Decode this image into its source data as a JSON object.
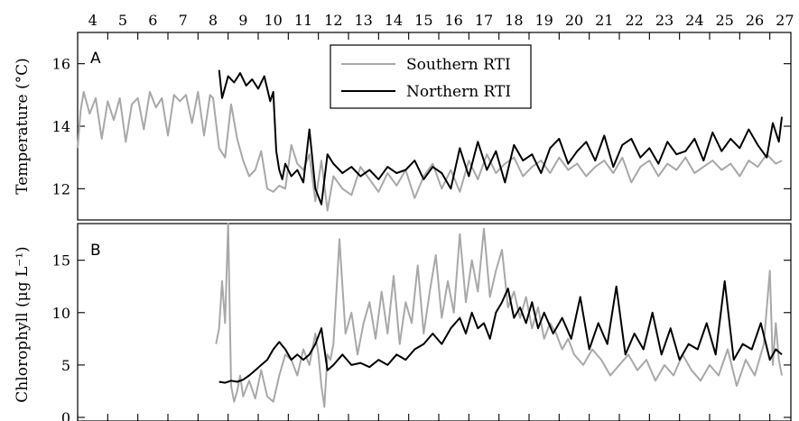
{
  "chart_data": [
    {
      "type": "line",
      "panel_label": "A",
      "ylabel": "Temperature (°C)",
      "ylim": [
        11,
        17
      ],
      "yticks": [
        12,
        14,
        16
      ],
      "x_tick_labels": [
        "4",
        "5",
        "6",
        "7",
        "8",
        "9",
        "10",
        "11",
        "12",
        "13",
        "14",
        "15",
        "16",
        "17",
        "18",
        "19",
        "20",
        "21",
        "22",
        "23",
        "24",
        "25",
        "26",
        "27"
      ],
      "xlim": [
        3.5,
        27.2
      ],
      "legend": {
        "placement": "top-center",
        "entries": [
          "Southern RTI",
          "Northern RTI"
        ]
      },
      "series": [
        {
          "name": "Southern RTI",
          "color": "#a8a8a8",
          "x": [
            3.5,
            3.6,
            3.7,
            3.9,
            4.1,
            4.3,
            4.5,
            4.7,
            4.9,
            5.1,
            5.3,
            5.5,
            5.7,
            5.9,
            6.1,
            6.3,
            6.5,
            6.7,
            6.9,
            7.1,
            7.3,
            7.5,
            7.7,
            7.9,
            8.0,
            8.2,
            8.4,
            8.6,
            8.8,
            9.0,
            9.2,
            9.4,
            9.6,
            9.8,
            10.0,
            10.2,
            10.4,
            10.6,
            10.8,
            11.0,
            11.2,
            11.4,
            11.6,
            11.8,
            12.0,
            12.3,
            12.6,
            12.9,
            13.2,
            13.5,
            13.8,
            14.1,
            14.4,
            14.7,
            15.0,
            15.3,
            15.6,
            15.9,
            16.2,
            16.5,
            16.8,
            17.1,
            17.4,
            17.7,
            18.0,
            18.3,
            18.6,
            18.9,
            19.2,
            19.5,
            19.8,
            20.1,
            20.4,
            20.7,
            21.0,
            21.3,
            21.6,
            21.9,
            22.2,
            22.5,
            22.8,
            23.1,
            23.4,
            23.7,
            24.0,
            24.3,
            24.6,
            24.9,
            25.2,
            25.5,
            25.8,
            26.1,
            26.4,
            26.7,
            26.9
          ],
          "y": [
            13.3,
            14.5,
            15.1,
            14.4,
            14.9,
            13.6,
            14.8,
            14.2,
            14.9,
            13.5,
            14.7,
            14.9,
            13.9,
            15.1,
            14.6,
            14.9,
            13.7,
            15.0,
            14.8,
            15.0,
            14.1,
            15.1,
            13.7,
            15.0,
            14.9,
            13.3,
            13.0,
            14.7,
            13.6,
            12.9,
            12.4,
            12.6,
            13.2,
            12.0,
            11.9,
            12.1,
            12.0,
            13.4,
            12.8,
            12.6,
            13.1,
            11.6,
            12.9,
            11.3,
            12.4,
            12.0,
            11.8,
            12.7,
            12.3,
            11.9,
            12.5,
            12.1,
            12.6,
            11.7,
            12.4,
            12.8,
            12.0,
            12.6,
            11.9,
            12.9,
            12.3,
            13.1,
            12.5,
            12.8,
            13.0,
            12.4,
            12.7,
            12.9,
            12.5,
            13.0,
            12.6,
            12.8,
            12.4,
            12.7,
            12.9,
            12.5,
            13.0,
            12.2,
            12.7,
            12.9,
            12.4,
            12.8,
            12.6,
            13.0,
            12.5,
            12.7,
            12.9,
            12.6,
            12.8,
            12.4,
            12.9,
            12.7,
            13.1,
            12.8,
            12.9
          ]
        },
        {
          "name": "Northern RTI",
          "color": "#000000",
          "x": [
            8.2,
            8.3,
            8.5,
            8.7,
            8.9,
            9.1,
            9.3,
            9.5,
            9.7,
            9.9,
            10.0,
            10.1,
            10.2,
            10.3,
            10.4,
            10.6,
            10.8,
            11.0,
            11.2,
            11.4,
            11.6,
            11.8,
            12.0,
            12.3,
            12.6,
            12.9,
            13.2,
            13.5,
            13.8,
            14.1,
            14.4,
            14.7,
            15.0,
            15.3,
            15.6,
            15.9,
            16.2,
            16.5,
            16.8,
            17.1,
            17.4,
            17.7,
            18.0,
            18.3,
            18.6,
            18.9,
            19.2,
            19.5,
            19.8,
            20.1,
            20.4,
            20.7,
            21.0,
            21.3,
            21.6,
            21.9,
            22.2,
            22.5,
            22.8,
            23.1,
            23.4,
            23.7,
            24.0,
            24.3,
            24.6,
            24.9,
            25.2,
            25.5,
            25.8,
            26.1,
            26.4,
            26.6,
            26.8,
            26.9
          ],
          "y": [
            15.8,
            14.9,
            15.6,
            15.4,
            15.7,
            15.3,
            15.5,
            15.2,
            15.6,
            14.8,
            15.1,
            13.2,
            12.6,
            12.3,
            12.8,
            12.4,
            12.6,
            12.2,
            13.9,
            12.0,
            11.5,
            13.1,
            12.8,
            12.5,
            12.7,
            12.4,
            12.6,
            12.3,
            12.7,
            12.5,
            12.6,
            12.9,
            12.3,
            12.7,
            12.5,
            12.0,
            13.3,
            12.4,
            13.5,
            12.6,
            13.2,
            12.2,
            13.4,
            12.9,
            13.1,
            12.5,
            13.3,
            13.6,
            12.8,
            13.2,
            13.5,
            12.9,
            13.7,
            12.7,
            13.4,
            13.6,
            13.0,
            13.3,
            12.8,
            13.5,
            13.1,
            13.2,
            13.6,
            12.9,
            13.8,
            13.2,
            13.6,
            13.3,
            13.9,
            13.4,
            13.0,
            14.1,
            13.5,
            14.3
          ]
        }
      ]
    },
    {
      "type": "line",
      "panel_label": "B",
      "ylabel": "Chlorophyll (μg L⁻¹)",
      "ylim": [
        0,
        18.5
      ],
      "yticks": [
        0,
        5,
        10,
        15
      ],
      "xlim": [
        3.5,
        27.2
      ],
      "series": [
        {
          "name": "Southern RTI",
          "color": "#a8a8a8",
          "x": [
            8.1,
            8.2,
            8.3,
            8.4,
            8.5,
            8.6,
            8.7,
            8.8,
            8.9,
            9.0,
            9.2,
            9.4,
            9.6,
            9.8,
            10.0,
            10.2,
            10.4,
            10.6,
            10.8,
            11.0,
            11.2,
            11.4,
            11.5,
            11.6,
            11.7,
            11.8,
            11.9,
            12.0,
            12.2,
            12.4,
            12.6,
            12.8,
            13.0,
            13.2,
            13.4,
            13.6,
            13.8,
            14.0,
            14.2,
            14.4,
            14.6,
            14.8,
            15.0,
            15.2,
            15.4,
            15.6,
            15.8,
            16.0,
            16.2,
            16.4,
            16.6,
            16.8,
            17.0,
            17.2,
            17.4,
            17.6,
            17.8,
            18.0,
            18.2,
            18.4,
            18.6,
            18.8,
            19.0,
            19.2,
            19.4,
            19.6,
            19.8,
            20.0,
            20.3,
            20.6,
            20.9,
            21.2,
            21.5,
            21.8,
            22.1,
            22.4,
            22.7,
            23.0,
            23.3,
            23.6,
            23.9,
            24.2,
            24.5,
            24.8,
            25.1,
            25.4,
            25.7,
            26.0,
            26.3,
            26.5,
            26.6,
            26.7,
            26.8,
            26.9
          ],
          "y": [
            7.0,
            8.5,
            13.0,
            9.0,
            18.5,
            3.0,
            1.5,
            2.5,
            4.0,
            2.0,
            3.5,
            1.8,
            4.5,
            2.0,
            1.5,
            4.0,
            6.0,
            5.5,
            4.0,
            6.5,
            5.0,
            8.0,
            6.0,
            3.0,
            1.0,
            6.0,
            5.5,
            7.0,
            17.0,
            8.0,
            10.0,
            6.0,
            9.0,
            11.0,
            7.5,
            12.0,
            8.0,
            13.5,
            7.0,
            11.0,
            9.0,
            14.5,
            8.0,
            12.0,
            15.5,
            9.5,
            13.0,
            10.0,
            17.5,
            11.0,
            15.0,
            12.0,
            18.0,
            11.5,
            14.0,
            16.0,
            10.5,
            12.0,
            9.5,
            11.5,
            8.5,
            10.5,
            7.5,
            9.0,
            8.0,
            6.5,
            7.5,
            6.0,
            5.0,
            6.5,
            5.5,
            4.0,
            5.0,
            6.0,
            4.5,
            5.5,
            3.5,
            5.0,
            4.0,
            6.0,
            4.5,
            3.5,
            5.0,
            4.0,
            6.5,
            3.0,
            5.5,
            4.0,
            7.0,
            14.0,
            5.0,
            9.0,
            5.5,
            4.0
          ]
        },
        {
          "name": "Northern RTI",
          "color": "#000000",
          "x": [
            8.2,
            8.4,
            8.6,
            8.8,
            9.0,
            9.2,
            9.4,
            9.6,
            9.8,
            10.0,
            10.2,
            10.4,
            10.6,
            10.8,
            11.0,
            11.2,
            11.4,
            11.6,
            11.8,
            12.0,
            12.3,
            12.6,
            12.9,
            13.2,
            13.5,
            13.8,
            14.1,
            14.4,
            14.7,
            15.0,
            15.3,
            15.6,
            15.9,
            16.2,
            16.4,
            16.6,
            16.8,
            17.0,
            17.2,
            17.4,
            17.6,
            17.8,
            18.0,
            18.2,
            18.4,
            18.6,
            18.8,
            19.0,
            19.3,
            19.6,
            19.9,
            20.2,
            20.5,
            20.8,
            21.1,
            21.4,
            21.7,
            22.0,
            22.3,
            22.6,
            22.9,
            23.2,
            23.5,
            23.8,
            24.1,
            24.4,
            24.7,
            25.0,
            25.3,
            25.6,
            25.9,
            26.2,
            26.5,
            26.7,
            26.9
          ],
          "y": [
            3.4,
            3.3,
            3.5,
            3.4,
            3.6,
            4.0,
            4.5,
            5.0,
            5.5,
            6.5,
            7.2,
            6.5,
            5.5,
            6.0,
            5.5,
            6.0,
            7.0,
            8.5,
            4.5,
            5.0,
            6.0,
            5.0,
            5.2,
            4.8,
            5.5,
            5.0,
            6.0,
            5.5,
            6.5,
            7.0,
            8.0,
            7.0,
            8.5,
            9.5,
            8.0,
            10.0,
            8.5,
            9.0,
            7.5,
            10.0,
            11.0,
            12.3,
            9.5,
            10.5,
            9.0,
            11.0,
            8.5,
            10.0,
            8.0,
            9.5,
            7.5,
            11.5,
            6.5,
            9.0,
            7.0,
            12.5,
            6.0,
            8.0,
            6.5,
            10.0,
            6.0,
            8.5,
            5.5,
            7.0,
            6.5,
            9.0,
            6.0,
            13.0,
            5.5,
            7.0,
            6.5,
            9.0,
            5.5,
            6.5,
            6.0
          ]
        }
      ]
    }
  ]
}
